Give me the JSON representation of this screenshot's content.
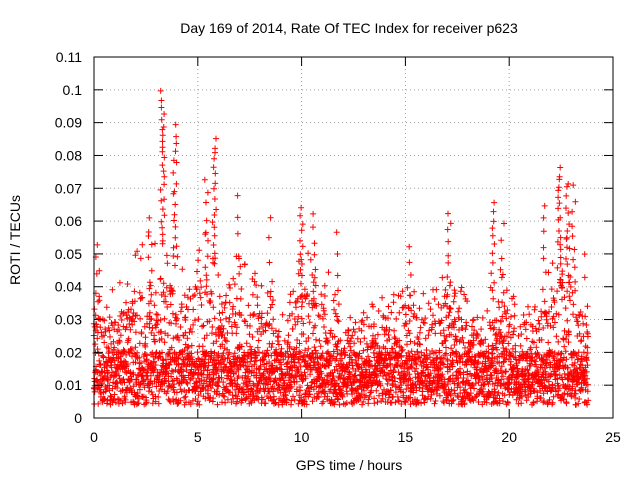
{
  "chart_data": {
    "type": "scatter",
    "title": "Day 169 of 2014, Rate Of TEC Index for receiver p623",
    "xlabel": "GPS time / hours",
    "ylabel": "ROTI / TECUs",
    "xlim": [
      0,
      25
    ],
    "ylim": [
      0,
      0.11
    ],
    "x_ticks": [
      {
        "value": 0,
        "label": "0"
      },
      {
        "value": 5,
        "label": "5"
      },
      {
        "value": 10,
        "label": "10"
      },
      {
        "value": 15,
        "label": "15"
      },
      {
        "value": 20,
        "label": "20"
      },
      {
        "value": 25,
        "label": "25"
      }
    ],
    "y_ticks": [
      {
        "value": 0,
        "label": "0"
      },
      {
        "value": 0.01,
        "label": "0.01"
      },
      {
        "value": 0.02,
        "label": "0.02"
      },
      {
        "value": 0.03,
        "label": "0.03"
      },
      {
        "value": 0.04,
        "label": "0.04"
      },
      {
        "value": 0.05,
        "label": "0.05"
      },
      {
        "value": 0.06,
        "label": "0.06"
      },
      {
        "value": 0.07,
        "label": "0.07"
      },
      {
        "value": 0.08,
        "label": "0.08"
      },
      {
        "value": 0.09,
        "label": "0.09"
      },
      {
        "value": 0.1,
        "label": "0.1"
      },
      {
        "value": 0.11,
        "label": "0.11"
      }
    ],
    "grid": true,
    "marker": "+",
    "series": [
      {
        "name": "ROTI",
        "color": "#ff0000",
        "x_range": [
          0,
          23.8
        ],
        "envelope": [
          [
            0.0,
            0.045
          ],
          [
            0.3,
            0.05
          ],
          [
            0.6,
            0.035
          ],
          [
            1.0,
            0.045
          ],
          [
            1.5,
            0.04
          ],
          [
            2.0,
            0.05
          ],
          [
            2.5,
            0.055
          ],
          [
            3.0,
            0.058
          ],
          [
            3.3,
            0.06
          ],
          [
            3.7,
            0.055
          ],
          [
            4.0,
            0.05
          ],
          [
            4.5,
            0.045
          ],
          [
            5.0,
            0.055
          ],
          [
            5.5,
            0.06
          ],
          [
            6.0,
            0.05
          ],
          [
            6.5,
            0.045
          ],
          [
            7.0,
            0.05
          ],
          [
            7.5,
            0.05
          ],
          [
            8.0,
            0.045
          ],
          [
            8.5,
            0.04
          ],
          [
            9.0,
            0.03
          ],
          [
            9.5,
            0.04
          ],
          [
            10.0,
            0.055
          ],
          [
            10.5,
            0.05
          ],
          [
            11.0,
            0.045
          ],
          [
            11.5,
            0.045
          ],
          [
            12.0,
            0.035
          ],
          [
            12.5,
            0.03
          ],
          [
            13.0,
            0.035
          ],
          [
            13.5,
            0.035
          ],
          [
            14.0,
            0.04
          ],
          [
            14.5,
            0.038
          ],
          [
            15.0,
            0.045
          ],
          [
            15.5,
            0.04
          ],
          [
            16.0,
            0.038
          ],
          [
            16.5,
            0.04
          ],
          [
            17.0,
            0.05
          ],
          [
            17.5,
            0.045
          ],
          [
            18.0,
            0.038
          ],
          [
            18.5,
            0.04
          ],
          [
            19.0,
            0.045
          ],
          [
            19.5,
            0.05
          ],
          [
            20.0,
            0.04
          ],
          [
            20.5,
            0.035
          ],
          [
            21.0,
            0.035
          ],
          [
            21.5,
            0.04
          ],
          [
            22.0,
            0.05
          ],
          [
            22.5,
            0.06
          ],
          [
            23.0,
            0.055
          ],
          [
            23.5,
            0.04
          ],
          [
            23.8,
            0.03
          ]
        ],
        "spikes": [
          {
            "x": 3.3,
            "ymax": 0.1,
            "count": 25
          },
          {
            "x": 3.9,
            "ymax": 0.09,
            "count": 18
          },
          {
            "x": 5.8,
            "ymax": 0.086,
            "count": 18
          },
          {
            "x": 5.4,
            "ymax": 0.073,
            "count": 10
          },
          {
            "x": 2.7,
            "ymax": 0.061,
            "count": 8
          },
          {
            "x": 6.9,
            "ymax": 0.069,
            "count": 6
          },
          {
            "x": 8.5,
            "ymax": 0.063,
            "count": 5
          },
          {
            "x": 10.0,
            "ymax": 0.066,
            "count": 12
          },
          {
            "x": 10.6,
            "ymax": 0.063,
            "count": 8
          },
          {
            "x": 11.7,
            "ymax": 0.057,
            "count": 5
          },
          {
            "x": 17.1,
            "ymax": 0.064,
            "count": 10
          },
          {
            "x": 19.2,
            "ymax": 0.067,
            "count": 12
          },
          {
            "x": 19.7,
            "ymax": 0.06,
            "count": 6
          },
          {
            "x": 21.7,
            "ymax": 0.066,
            "count": 8
          },
          {
            "x": 22.4,
            "ymax": 0.077,
            "count": 20
          },
          {
            "x": 22.8,
            "ymax": 0.073,
            "count": 14
          },
          {
            "x": 23.1,
            "ymax": 0.071,
            "count": 10
          },
          {
            "x": 0.1,
            "ymax": 0.054,
            "count": 6
          },
          {
            "x": 23.7,
            "ymax": 0.051,
            "count": 4
          },
          {
            "x": 15.2,
            "ymax": 0.054,
            "count": 6
          }
        ]
      }
    ]
  }
}
